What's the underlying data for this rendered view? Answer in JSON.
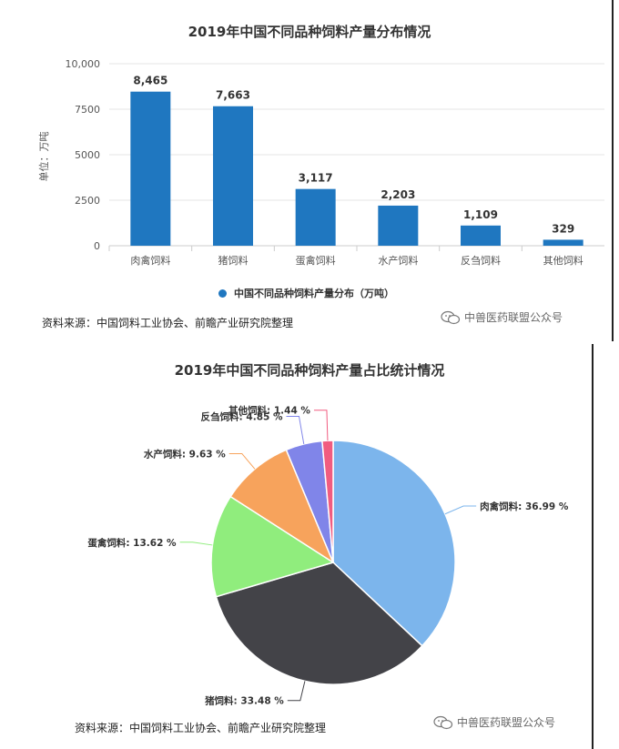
{
  "chart_data": [
    {
      "type": "bar",
      "title": "2019年中国不同品种饲料产量分布情况",
      "ylabel": "单位：万吨",
      "ylim": [
        0,
        10000
      ],
      "yticks": [
        "10,000",
        "7500",
        "5000",
        "2500",
        "0"
      ],
      "yticks_values": [
        10000,
        7500,
        5000,
        2500,
        0
      ],
      "categories": [
        "肉禽饲料",
        "猪饲料",
        "蛋禽饲料",
        "水产饲料",
        "反刍饲料",
        "其他饲料"
      ],
      "values": [
        8465,
        7663,
        3117,
        2203,
        1109,
        329
      ],
      "value_labels": [
        "8,465",
        "7,663",
        "3,117",
        "2,203",
        "1,109",
        "329"
      ],
      "legend": "中国不同品种饲料产量分布（万吨）",
      "legend_position": "bottom",
      "grid": true,
      "color": "#1f77c0"
    },
    {
      "type": "pie",
      "title": "2019年中国不同品种饲料产量占比统计情况",
      "slices": [
        {
          "label": "肉禽饲料",
          "value": 36.99,
          "text": "肉禽饲料: 36.99 %",
          "color": "#7cb5ec"
        },
        {
          "label": "猪饲料",
          "value": 33.48,
          "text": "猪饲料: 33.48 %",
          "color": "#434348"
        },
        {
          "label": "蛋禽饲料",
          "value": 13.62,
          "text": "蛋禽饲料: 13.62 %",
          "color": "#90ed7d"
        },
        {
          "label": "水产饲料",
          "value": 9.63,
          "text": "水产饲料: 9.63 %",
          "color": "#f7a35c"
        },
        {
          "label": "反刍饲料",
          "value": 4.85,
          "text": "反刍饲料: 4.85 %",
          "color": "#8085e9"
        },
        {
          "label": "其他饲料",
          "value": 1.44,
          "text": "其他饲料: 1.44 %",
          "color": "#f15c80"
        }
      ]
    }
  ],
  "footer": {
    "source_bar": "资料来源：中国饲料工业协会、前瞻产业研究院整理",
    "source_pie": "资料来源：中国饲料工业协会、前瞻产业研究院整理",
    "wechat_bar": "中兽医药联盟公众号",
    "wechat_pie": "中兽医药联盟公众号"
  },
  "icons": {
    "wechat": "wechat-icon"
  }
}
